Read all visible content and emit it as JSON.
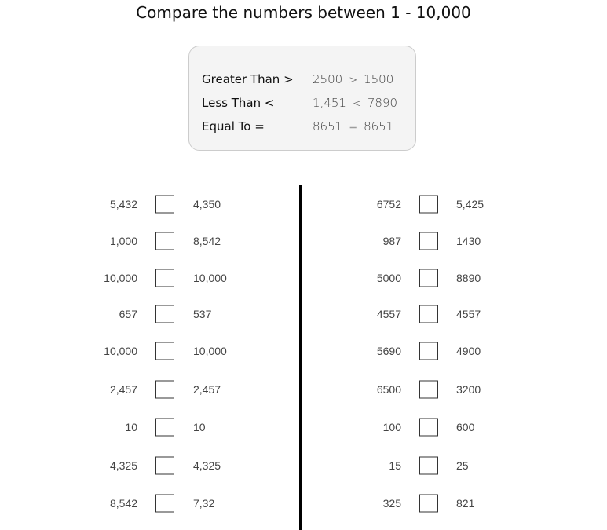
{
  "title": "Compare the numbers between 1 - 10,000",
  "legend": [
    {
      "label": "Greater Than >",
      "a": "2500",
      "op": ">",
      "b": "1500"
    },
    {
      "label": "Less Than <",
      "a": "1,451",
      "op": "<",
      "b": "7890"
    },
    {
      "label": "Equal To =",
      "a": "8651",
      "op": "=",
      "b": "8651"
    }
  ],
  "left": [
    {
      "a": "5,432",
      "b": "4,350"
    },
    {
      "a": "1,000",
      "b": "8,542"
    },
    {
      "a": "10,000",
      "b": "10,000"
    },
    {
      "a": "657",
      "b": "537"
    },
    {
      "a": "10,000",
      "b": "10,000"
    },
    {
      "a": "2,457",
      "b": "2,457"
    },
    {
      "a": "10",
      "b": "10"
    },
    {
      "a": "4,325",
      "b": "4,325"
    },
    {
      "a": "8,542",
      "b": "7,32"
    }
  ],
  "right": [
    {
      "a": "6752",
      "b": "5,425"
    },
    {
      "a": "987",
      "b": "1430"
    },
    {
      "a": "5000",
      "b": "8890"
    },
    {
      "a": "4557",
      "b": "4557"
    },
    {
      "a": "5690",
      "b": "4900"
    },
    {
      "a": "6500",
      "b": "3200"
    },
    {
      "a": "100",
      "b": "600"
    },
    {
      "a": "15",
      "b": "25"
    },
    {
      "a": "325",
      "b": "821"
    }
  ]
}
